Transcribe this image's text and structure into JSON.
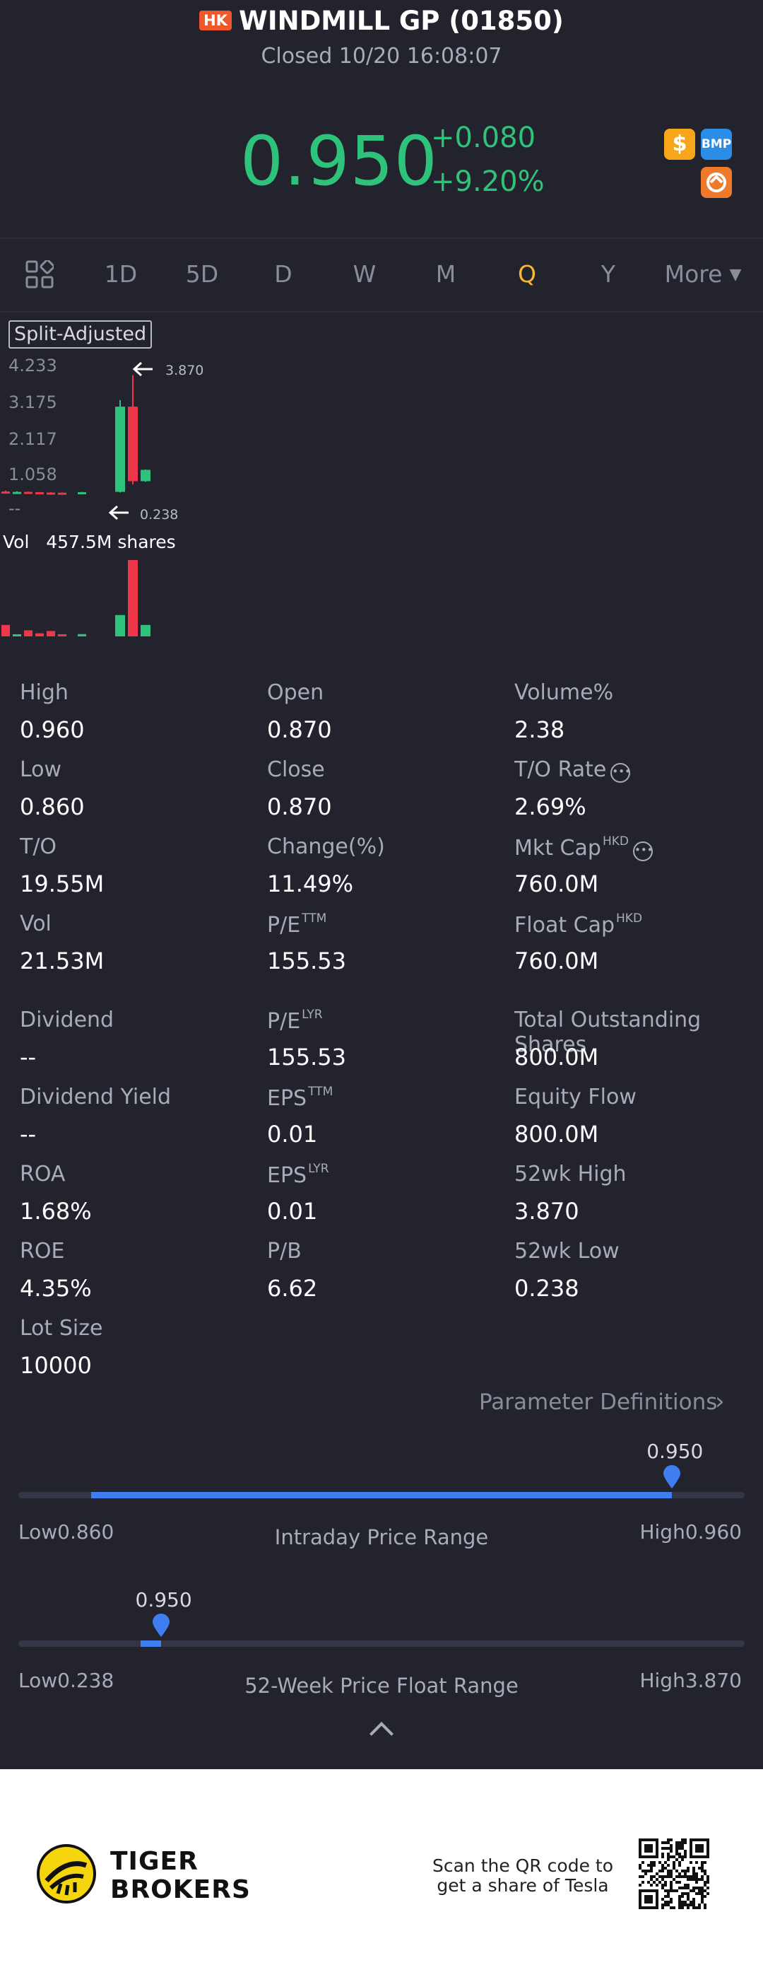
{
  "header": {
    "market_badge": "HK",
    "title": "WINDMILL GP (01850)",
    "status": "Closed 10/20 16:08:07"
  },
  "quote": {
    "price": "0.950",
    "change": "+0.080",
    "change_pct": "+9.20%",
    "price_color": "#2ec27a",
    "badges": [
      "dollar-icon",
      "BMP",
      "swap-icon"
    ],
    "badge_dollar": "$",
    "badge_bmp": "BMP"
  },
  "tabs": {
    "items": [
      "1D",
      "5D",
      "D",
      "W",
      "M",
      "Q",
      "Y"
    ],
    "active": "Q",
    "more": "More",
    "active_color": "#f5b82e"
  },
  "chart": {
    "split_label": "Split-Adjusted",
    "y_ticks": [
      "4.233",
      "3.175",
      "2.117",
      "1.058",
      "--"
    ],
    "high_marker": "3.870",
    "low_marker": "0.238",
    "volume_label": "Vol",
    "volume_value": "457.5M shares"
  },
  "chart_data": {
    "type": "candlestick",
    "ylim": [
      0,
      4.233
    ],
    "candles": [
      {
        "open": 0.28,
        "close": 0.24,
        "high": 0.31,
        "low": 0.22,
        "color": "red"
      },
      {
        "open": 0.25,
        "close": 0.27,
        "high": 0.29,
        "low": 0.22,
        "color": "green"
      },
      {
        "open": 0.27,
        "close": 0.25,
        "high": 0.28,
        "low": 0.23,
        "color": "red"
      },
      {
        "open": 0.26,
        "close": 0.24,
        "high": 0.27,
        "low": 0.23,
        "color": "red"
      },
      {
        "open": 0.25,
        "close": 0.245,
        "high": 0.26,
        "low": 0.238,
        "color": "red"
      },
      {
        "open": 0.245,
        "close": 0.24,
        "high": 0.25,
        "low": 0.238,
        "color": "red"
      },
      {
        "open": 0.24,
        "close": 0.26,
        "high": 0.27,
        "low": 0.238,
        "color": "green"
      },
      {
        "open": 0.27,
        "close": 2.9,
        "high": 3.1,
        "low": 0.25,
        "color": "green"
      },
      {
        "open": 2.9,
        "close": 0.6,
        "high": 3.87,
        "low": 0.5,
        "color": "red"
      },
      {
        "open": 0.6,
        "close": 0.95,
        "high": 0.96,
        "low": 0.58,
        "color": "green"
      }
    ],
    "volumes": [
      0.15,
      0.02,
      0.08,
      0.04,
      0.07,
      0.02,
      0.03,
      0.28,
      1.0,
      0.15
    ]
  },
  "stats": {
    "high_label": "High",
    "high": "0.960",
    "open_label": "Open",
    "open": "0.870",
    "volpct_label": "Volume%",
    "volpct": "2.38",
    "low_label": "Low",
    "low": "0.860",
    "close_label": "Close",
    "close": "0.870",
    "torate_label": "T/O Rate",
    "torate": "2.69%",
    "to_label": "T/O",
    "to": "19.55M",
    "changepct_label": "Change(%)",
    "changepct": "11.49%",
    "mktcap_label": "Mkt Cap",
    "mktcap_sup": "HKD",
    "mktcap": "760.0M",
    "vol_label": "Vol",
    "vol": "21.53M",
    "pe_ttm_label": "P/E",
    "pe_ttm_sup": "TTM",
    "pe_ttm": "155.53",
    "floatcap_label": "Float Cap",
    "floatcap_sup": "HKD",
    "floatcap": "760.0M",
    "dividend_label": "Dividend",
    "dividend": "--",
    "pe_lyr_label": "P/E",
    "pe_lyr_sup": "LYR",
    "pe_lyr": "155.53",
    "tos_label": "Total Outstanding Shares",
    "tos": "800.0M",
    "divyield_label": "Dividend Yield",
    "divyield": "--",
    "eps_ttm_label": "EPS",
    "eps_ttm_sup": "TTM",
    "eps_ttm": "0.01",
    "equityflow_label": "Equity Flow",
    "equityflow": "800.0M",
    "roa_label": "ROA",
    "roa": "1.68%",
    "eps_lyr_label": "EPS",
    "eps_lyr_sup": "LYR",
    "eps_lyr": "0.01",
    "wk52high_label": "52wk High",
    "wk52high": "3.870",
    "roe_label": "ROE",
    "roe": "4.35%",
    "pb_label": "P/B",
    "pb": "6.62",
    "wk52low_label": "52wk Low",
    "wk52low": "0.238",
    "lot_label": "Lot Size",
    "lot": "10000"
  },
  "param_definitions": "Parameter Definitions",
  "intraday": {
    "current": "0.950",
    "low_label": "Low",
    "low": "0.860",
    "high_label": "High",
    "high": "0.960",
    "title": "Intraday Price Range",
    "low_value": 0.86,
    "high_value": 0.96,
    "current_value": 0.95,
    "fill_start_value": 0.87
  },
  "week52": {
    "current": "0.950",
    "low_label": "Low",
    "low": "0.238",
    "high_label": "High",
    "high": "3.870",
    "title": "52-Week Price Float Range",
    "low_value": 0.238,
    "high_value": 3.87,
    "current_value": 0.95,
    "fill_start_value": 0.85
  },
  "footer": {
    "brand_line1": "TIGER",
    "brand_line2": "BROKERS",
    "scan_line1": "Scan the QR code to",
    "scan_line2": "get a share of Tesla"
  }
}
